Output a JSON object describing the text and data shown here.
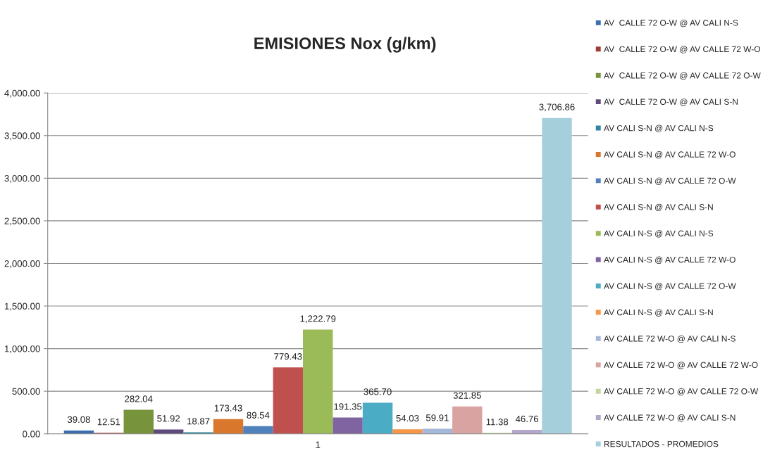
{
  "chart_data": {
    "type": "bar",
    "title": "EMISIONES Nox (g/km)",
    "categories": [
      "1"
    ],
    "series": [
      {
        "name": "AV  CALLE 72 O-W @ AV CALI N-S",
        "color": "#3c6eaf",
        "values": [
          39.08
        ],
        "value_labels": [
          "39.08"
        ]
      },
      {
        "name": "AV  CALLE 72 O-W @ AV CALLE 72 W-O",
        "color": "#a33a37",
        "values": [
          12.51
        ],
        "value_labels": [
          "12.51"
        ]
      },
      {
        "name": "AV  CALLE 72 O-W @ AV CALLE 72 O-W",
        "color": "#77933c",
        "values": [
          282.04
        ],
        "value_labels": [
          "282.04"
        ]
      },
      {
        "name": "AV  CALLE 72 O-W @ AV CALI S-N",
        "color": "#604a7b",
        "values": [
          51.92
        ],
        "value_labels": [
          "51.92"
        ]
      },
      {
        "name": "AV CALI S-N @ AV CALI N-S",
        "color": "#31859c",
        "values": [
          18.87
        ],
        "value_labels": [
          "18.87"
        ]
      },
      {
        "name": "AV CALI S-N @ AV CALLE 72 W-O",
        "color": "#d9782c",
        "values": [
          173.43
        ],
        "value_labels": [
          "173.43"
        ]
      },
      {
        "name": "AV CALI S-N @ AV CALLE 72 O-W",
        "color": "#4f81bd",
        "values": [
          89.54
        ],
        "value_labels": [
          "89.54"
        ]
      },
      {
        "name": "AV CALI S-N @ AV CALI S-N",
        "color": "#c0504d",
        "values": [
          779.43
        ],
        "value_labels": [
          "779.43"
        ]
      },
      {
        "name": "AV CALI N-S @ AV CALI N-S",
        "color": "#9bbb59",
        "values": [
          1222.79
        ],
        "value_labels": [
          "1,222.79"
        ]
      },
      {
        "name": "AV CALI N-S @ AV CALLE 72 W-O",
        "color": "#8064a2",
        "values": [
          191.35
        ],
        "value_labels": [
          "191.35"
        ]
      },
      {
        "name": "AV CALI N-S @ AV CALLE 72 O-W",
        "color": "#4bacc6",
        "values": [
          365.7
        ],
        "value_labels": [
          "365.70"
        ]
      },
      {
        "name": "AV CALI N-S @ AV CALI S-N",
        "color": "#f79646",
        "values": [
          54.03
        ],
        "value_labels": [
          "54.03"
        ]
      },
      {
        "name": "AV CALLE 72 W-O @ AV CALI N-S",
        "color": "#a5b8da",
        "values": [
          59.91
        ],
        "value_labels": [
          "59.91"
        ]
      },
      {
        "name": "AV CALLE 72 W-O @ AV CALLE 72 W-O",
        "color": "#d9a3a2",
        "values": [
          321.85
        ],
        "value_labels": [
          "321.85"
        ]
      },
      {
        "name": "AV CALLE 72 W-O @ AV CALLE 72 O-W",
        "color": "#c4d6a0",
        "values": [
          11.38
        ],
        "value_labels": [
          "11.38"
        ]
      },
      {
        "name": "AV CALLE 72 W-O @ AV CALI S-N",
        "color": "#b3a8c9",
        "values": [
          46.76
        ],
        "value_labels": [
          "46.76"
        ]
      },
      {
        "name": "RESULTADOS - PROMEDIOS",
        "color": "#a6cfdc",
        "values": [
          3706.86
        ],
        "value_labels": [
          "3,706.86"
        ]
      }
    ],
    "ylim": [
      0,
      4000
    ],
    "yticks": [
      {
        "value": 0,
        "label": "0.00"
      },
      {
        "value": 500,
        "label": "500.00"
      },
      {
        "value": 1000,
        "label": "1,000.00"
      },
      {
        "value": 1500,
        "label": "1,500.00"
      },
      {
        "value": 2000,
        "label": "2,000.00"
      },
      {
        "value": 2500,
        "label": "2,500.00"
      },
      {
        "value": 3000,
        "label": "3,000.00"
      },
      {
        "value": 3500,
        "label": "3,500.00"
      },
      {
        "value": 4000,
        "label": "4,000.00"
      }
    ],
    "grid": "y",
    "legend": "right"
  }
}
